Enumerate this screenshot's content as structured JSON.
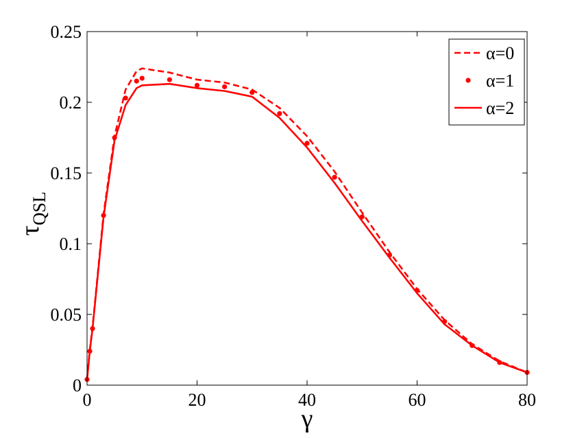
{
  "chart_data": {
    "type": "line",
    "xlabel": "γ",
    "ylabel_main": "τ",
    "ylabel_sub": "QSL",
    "xlim": [
      0,
      80
    ],
    "ylim": [
      0,
      0.25
    ],
    "xticks": [
      0,
      20,
      40,
      60,
      80
    ],
    "xtick_labels": [
      "0",
      "20",
      "40",
      "60",
      "80"
    ],
    "yticks": [
      0,
      0.05,
      0.1,
      0.15,
      0.2,
      0.25
    ],
    "ytick_labels": [
      "0",
      "0.05",
      "0.1",
      "0.15",
      "0.2",
      "0.25"
    ],
    "grid": false,
    "legend_position": "top-right",
    "color": "#ff0000",
    "series": [
      {
        "name": "α=0",
        "style": "dashed",
        "x": [
          0,
          0.5,
          1,
          3,
          5,
          7,
          9,
          10,
          15,
          20,
          25,
          30,
          35,
          40,
          45,
          50,
          55,
          60,
          65,
          70,
          75,
          80
        ],
        "y": [
          0.004,
          0.025,
          0.041,
          0.121,
          0.176,
          0.209,
          0.222,
          0.224,
          0.221,
          0.216,
          0.214,
          0.209,
          0.196,
          0.176,
          0.151,
          0.122,
          0.094,
          0.068,
          0.046,
          0.029,
          0.017,
          0.009
        ]
      },
      {
        "name": "α=1",
        "style": "dots",
        "x": [
          0,
          0.5,
          1,
          3,
          5,
          7,
          9,
          10,
          15,
          20,
          25,
          30,
          35,
          40,
          45,
          50,
          55,
          60,
          65,
          70,
          75,
          80
        ],
        "y": [
          0.004,
          0.024,
          0.04,
          0.12,
          0.175,
          0.203,
          0.215,
          0.217,
          0.216,
          0.212,
          0.211,
          0.207,
          0.192,
          0.171,
          0.147,
          0.119,
          0.092,
          0.067,
          0.045,
          0.028,
          0.016,
          0.009
        ]
      },
      {
        "name": "α=2",
        "style": "solid",
        "x": [
          0,
          0.5,
          1,
          3,
          5,
          7,
          9,
          10,
          15,
          20,
          25,
          30,
          35,
          40,
          45,
          50,
          55,
          60,
          65,
          70,
          75,
          80
        ],
        "y": [
          0.004,
          0.024,
          0.04,
          0.119,
          0.173,
          0.198,
          0.21,
          0.212,
          0.213,
          0.21,
          0.208,
          0.204,
          0.189,
          0.168,
          0.143,
          0.116,
          0.09,
          0.065,
          0.043,
          0.028,
          0.016,
          0.009
        ]
      }
    ]
  }
}
